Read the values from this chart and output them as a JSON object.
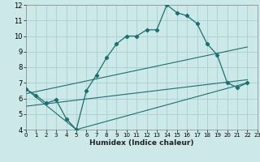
{
  "xlabel": "Humidex (Indice chaleur)",
  "xlim": [
    0,
    23
  ],
  "ylim": [
    4,
    12
  ],
  "xticks": [
    0,
    1,
    2,
    3,
    4,
    5,
    6,
    7,
    8,
    9,
    10,
    11,
    12,
    13,
    14,
    15,
    16,
    17,
    18,
    19,
    20,
    21,
    22,
    23
  ],
  "yticks": [
    4,
    5,
    6,
    7,
    8,
    9,
    10,
    11,
    12
  ],
  "bg_color": "#cce8e8",
  "line_color": "#1a7070",
  "grid_color": "#aacfcf",
  "series1_x": [
    0,
    1,
    2,
    3,
    4,
    5,
    6,
    7,
    8,
    9,
    10,
    11,
    12,
    13,
    14,
    15,
    16,
    17,
    18,
    19,
    20,
    21,
    22
  ],
  "series1_y": [
    6.6,
    6.2,
    5.7,
    5.9,
    4.7,
    4.0,
    6.5,
    7.5,
    8.6,
    9.5,
    10.0,
    10.0,
    10.4,
    10.4,
    12.0,
    11.5,
    11.3,
    10.8,
    9.5,
    8.8,
    7.0,
    6.7,
    7.0
  ],
  "series2_x": [
    0,
    5,
    22
  ],
  "series2_y": [
    6.6,
    4.0,
    7.0
  ],
  "series3_x": [
    0,
    22
  ],
  "series3_y": [
    6.3,
    9.3
  ],
  "series4_x": [
    0,
    22
  ],
  "series4_y": [
    5.5,
    7.2
  ]
}
